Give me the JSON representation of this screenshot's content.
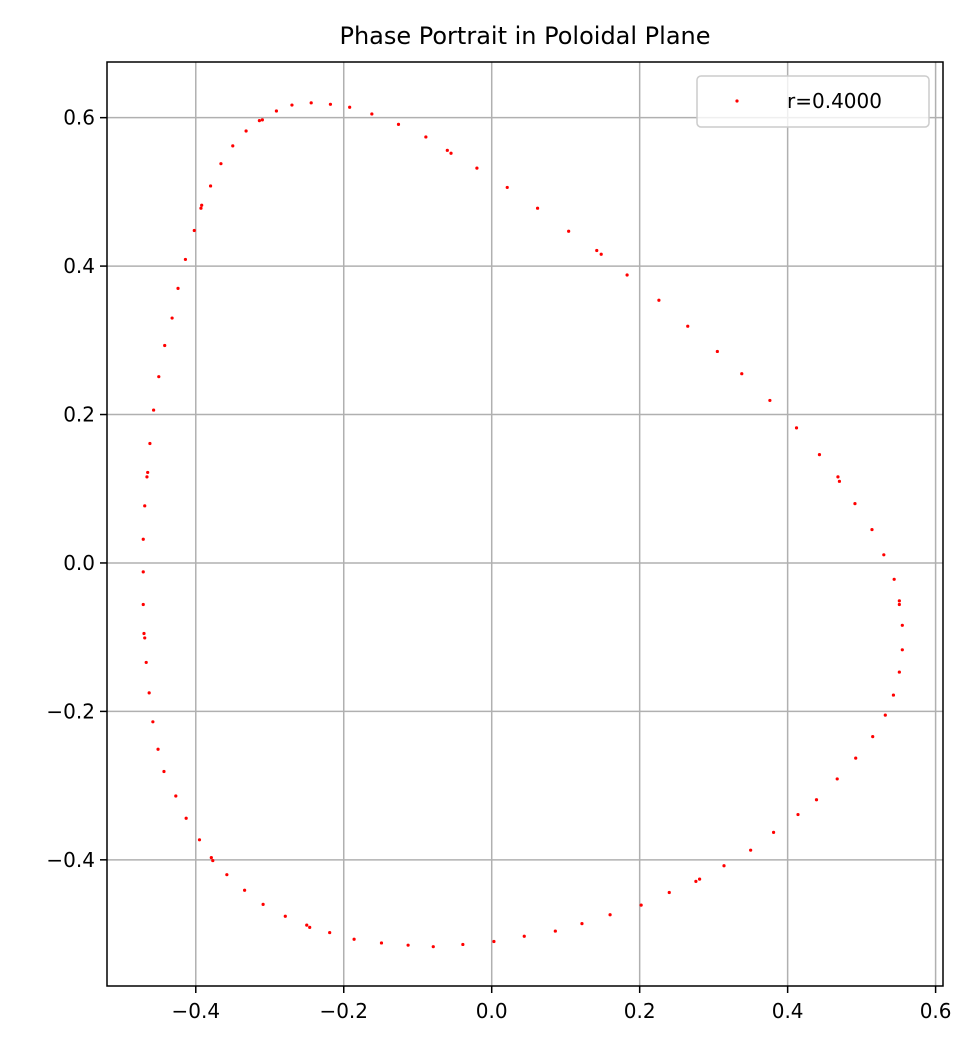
{
  "chart_data": {
    "type": "scatter",
    "title": "Phase Portrait in Poloidal Plane",
    "xlabel": "",
    "ylabel": "",
    "xlim": [
      -0.52,
      0.61
    ],
    "ylim": [
      -0.57,
      0.675
    ],
    "x_ticks": [
      -0.4,
      -0.2,
      0.0,
      0.2,
      0.4,
      0.6
    ],
    "x_tick_labels": [
      "−0.4",
      "−0.2",
      "0.0",
      "0.2",
      "0.4",
      "0.6"
    ],
    "y_ticks": [
      -0.4,
      -0.2,
      0.0,
      0.2,
      0.4,
      0.6
    ],
    "y_tick_labels": [
      "−0.4",
      "−0.2",
      "0.0",
      "0.2",
      "0.4",
      "0.6"
    ],
    "grid": true,
    "legend_position": "top-right",
    "series": [
      {
        "name": "r=0.4000",
        "color": "#ff0000",
        "marker": "point",
        "points": [
          [
            -0.244,
            0.62
          ],
          [
            -0.218,
            0.618
          ],
          [
            -0.192,
            0.614
          ],
          [
            -0.27,
            0.617
          ],
          [
            -0.291,
            0.609
          ],
          [
            -0.162,
            0.605
          ],
          [
            -0.31,
            0.597
          ],
          [
            -0.314,
            0.596
          ],
          [
            -0.126,
            0.591
          ],
          [
            -0.332,
            0.582
          ],
          [
            -0.089,
            0.574
          ],
          [
            -0.35,
            0.562
          ],
          [
            -0.06,
            0.556
          ],
          [
            -0.055,
            0.552
          ],
          [
            -0.366,
            0.538
          ],
          [
            -0.02,
            0.532
          ],
          [
            -0.38,
            0.508
          ],
          [
            0.021,
            0.506
          ],
          [
            -0.392,
            0.482
          ],
          [
            -0.393,
            0.478
          ],
          [
            0.062,
            0.478
          ],
          [
            -0.402,
            0.448
          ],
          [
            0.104,
            0.447
          ],
          [
            0.142,
            0.421
          ],
          [
            0.148,
            0.416
          ],
          [
            -0.414,
            0.409
          ],
          [
            0.183,
            0.388
          ],
          [
            -0.424,
            0.37
          ],
          [
            0.226,
            0.354
          ],
          [
            -0.432,
            0.33
          ],
          [
            0.265,
            0.319
          ],
          [
            -0.442,
            0.293
          ],
          [
            0.305,
            0.285
          ],
          [
            -0.45,
            0.251
          ],
          [
            0.338,
            0.255
          ],
          [
            0.376,
            0.219
          ],
          [
            -0.457,
            0.206
          ],
          [
            0.412,
            0.182
          ],
          [
            -0.462,
            0.161
          ],
          [
            0.443,
            0.146
          ],
          [
            -0.465,
            0.122
          ],
          [
            -0.466,
            0.116
          ],
          [
            0.468,
            0.116
          ],
          [
            0.47,
            0.11
          ],
          [
            0.491,
            0.08
          ],
          [
            -0.469,
            0.077
          ],
          [
            0.514,
            0.045
          ],
          [
            -0.471,
            0.032
          ],
          [
            0.53,
            0.011
          ],
          [
            -0.471,
            -0.012
          ],
          [
            0.544,
            -0.022
          ],
          [
            0.551,
            -0.051
          ],
          [
            -0.471,
            -0.056
          ],
          [
            0.551,
            -0.056
          ],
          [
            0.555,
            -0.084
          ],
          [
            -0.47,
            -0.095
          ],
          [
            -0.469,
            -0.101
          ],
          [
            0.555,
            -0.117
          ],
          [
            -0.467,
            -0.134
          ],
          [
            0.551,
            -0.147
          ],
          [
            -0.463,
            -0.175
          ],
          [
            0.543,
            -0.178
          ],
          [
            -0.458,
            -0.214
          ],
          [
            0.532,
            -0.205
          ],
          [
            0.515,
            -0.234
          ],
          [
            -0.451,
            -0.251
          ],
          [
            0.492,
            -0.263
          ],
          [
            -0.443,
            -0.281
          ],
          [
            0.467,
            -0.291
          ],
          [
            -0.427,
            -0.314
          ],
          [
            0.439,
            -0.319
          ],
          [
            -0.413,
            -0.344
          ],
          [
            0.414,
            -0.339
          ],
          [
            -0.395,
            -0.373
          ],
          [
            0.381,
            -0.363
          ],
          [
            -0.379,
            -0.397
          ],
          [
            -0.377,
            -0.401
          ],
          [
            0.35,
            -0.387
          ],
          [
            -0.358,
            -0.42
          ],
          [
            0.314,
            -0.408
          ],
          [
            -0.334,
            -0.441
          ],
          [
            0.281,
            -0.426
          ],
          [
            0.276,
            -0.429
          ],
          [
            -0.309,
            -0.46
          ],
          [
            0.24,
            -0.444
          ],
          [
            -0.279,
            -0.476
          ],
          [
            0.202,
            -0.461
          ],
          [
            -0.25,
            -0.488
          ],
          [
            -0.246,
            -0.491
          ],
          [
            0.16,
            -0.474
          ],
          [
            -0.219,
            -0.498
          ],
          [
            0.122,
            -0.486
          ],
          [
            0.086,
            -0.496
          ],
          [
            -0.186,
            -0.507
          ],
          [
            0.044,
            -0.503
          ],
          [
            -0.149,
            -0.512
          ],
          [
            0.003,
            -0.51
          ],
          [
            -0.113,
            -0.515
          ],
          [
            -0.039,
            -0.514
          ],
          [
            -0.079,
            -0.517
          ]
        ]
      }
    ]
  }
}
